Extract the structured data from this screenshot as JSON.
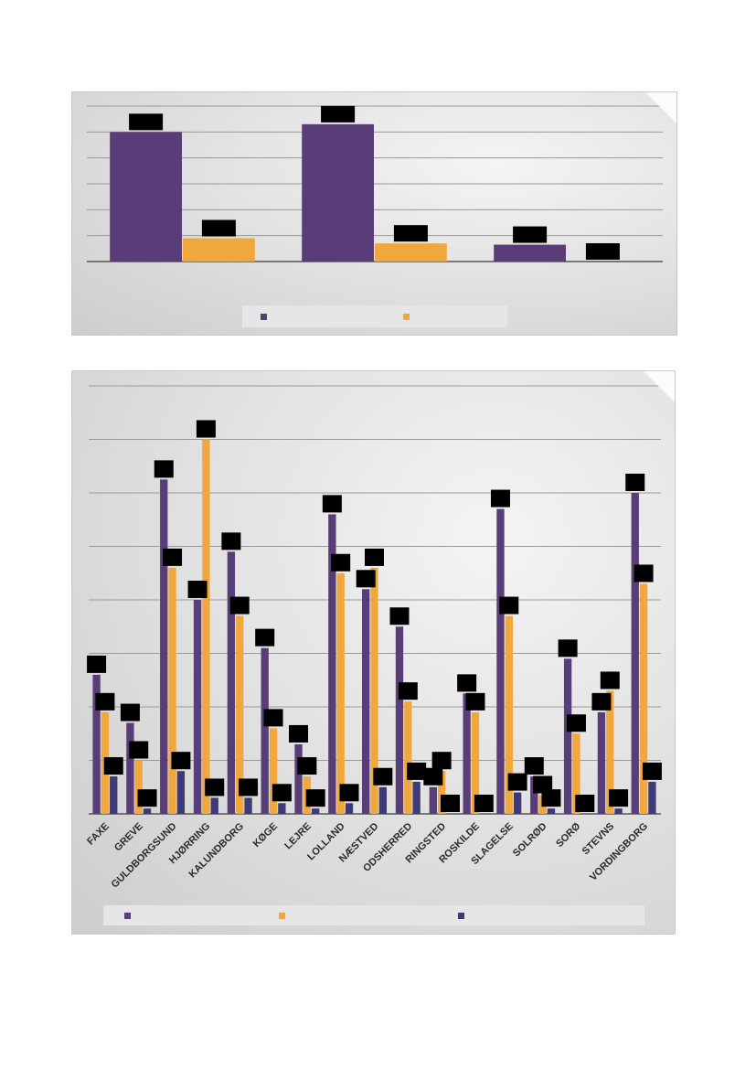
{
  "colors": {
    "purple": "#583d78",
    "orange": "#f0a83c",
    "navy": "#3e3a78",
    "label_box": "#000000",
    "panel_bg": "#e2e2e2",
    "legend_bg": "#e6e6e6"
  },
  "chart_data": [
    {
      "type": "bar",
      "title": "",
      "xlabel": "",
      "ylabel": "",
      "grid": true,
      "legend_position": "bottom",
      "categories": [
        "",
        "",
        ""
      ],
      "series": [
        {
          "values": [
            5.0,
            5.3,
            0.65
          ]
        },
        {
          "values": [
            0.9,
            0.7,
            0.0
          ]
        }
      ],
      "ylim": [
        0,
        6
      ]
    },
    {
      "type": "bar",
      "title": "",
      "xlabel": "",
      "ylabel": "",
      "grid": true,
      "legend_position": "bottom",
      "categories": [
        "FAXE",
        "GREVE",
        "GULDBORGSUND",
        "HJØRRING",
        "KALUNDBORG",
        "KØGE",
        "LEJRE",
        "LOLLAND",
        "NÆSTVED",
        "ODSHERRED",
        "RINGSTED",
        "ROSKILDE",
        "SLAGELSE",
        "SOLRØD",
        "SORØ",
        "STEVNS",
        "VORDINGBORG"
      ],
      "series": [
        {
          "values": [
            2.6,
            1.7,
            6.25,
            4.0,
            4.9,
            3.1,
            1.3,
            5.6,
            4.2,
            3.5,
            0.5,
            2.25,
            5.7,
            0.7,
            2.9,
            1.9,
            6.0
          ]
        },
        {
          "values": [
            1.9,
            1.0,
            4.6,
            7.0,
            3.7,
            1.6,
            0.7,
            4.5,
            4.6,
            2.1,
            0.8,
            1.9,
            3.7,
            0.35,
            1.5,
            2.3,
            4.3
          ]
        },
        {
          "values": [
            0.7,
            0.1,
            0.8,
            0.3,
            0.3,
            0.2,
            0.1,
            0.2,
            0.5,
            0.6,
            0.0,
            0.0,
            0.4,
            0.1,
            0.0,
            0.1,
            0.6
          ]
        }
      ],
      "ylim": [
        0,
        8
      ]
    }
  ]
}
